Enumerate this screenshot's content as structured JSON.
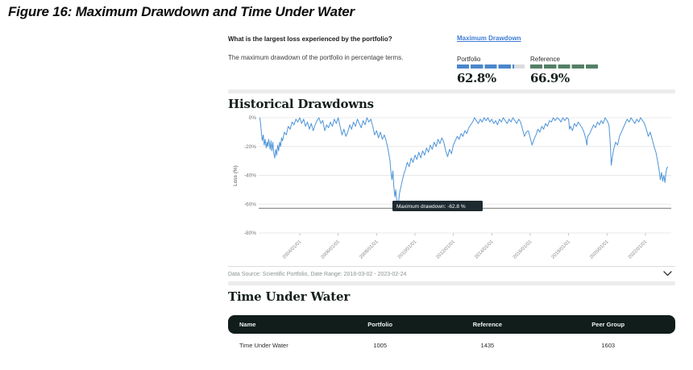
{
  "figure_title": "Figure 16: Maximum Drawdown and Time Under Water",
  "colors": {
    "link_blue": "#3e7cd6",
    "bar_blue": "#4a86c9",
    "bar_green": "#538066",
    "bar_track": "#dcdcdc",
    "line_blue": "#4e94d9",
    "table_header_bg": "#101d1a",
    "tooltip_bg": "#1d2a30"
  },
  "qa": {
    "question": "What is the largest loss experienced by the portfolio?",
    "description": "The maximum drawdown of the portfolio in percentage terms.",
    "link_label": "Maximum Drawdown",
    "portfolio": {
      "label": "Portfolio",
      "value": "62.8%",
      "fill_pct": 84
    },
    "reference": {
      "label": "Reference",
      "value": "66.9%",
      "fill_pct": 100
    }
  },
  "chart": {
    "heading": "Historical Drawdowns",
    "footer": "Data Source: Scientific Portfolio, Date Range: 2018-03-02 - 2023-02-24"
  },
  "chart_data": {
    "type": "line",
    "title": "Historical Drawdowns",
    "xlabel": "",
    "ylabel": "Loss (%)",
    "ylim": [
      -80,
      0
    ],
    "grid": true,
    "legend": "none",
    "y_ticks": [
      {
        "value": 0,
        "label": "0%"
      },
      {
        "value": -20,
        "label": "-20%"
      },
      {
        "value": -40,
        "label": "-40%"
      },
      {
        "value": -60,
        "label": "-60%"
      },
      {
        "value": -80,
        "label": "-80%"
      }
    ],
    "x_ticks": [
      {
        "year": 2004,
        "label": "2004/01/01"
      },
      {
        "year": 2006,
        "label": "2006/01/01"
      },
      {
        "year": 2008,
        "label": "2008/01/01"
      },
      {
        "year": 2010,
        "label": "2010/01/01"
      },
      {
        "year": 2012,
        "label": "2012/01/01"
      },
      {
        "year": 2014,
        "label": "2014/01/01"
      },
      {
        "year": 2016,
        "label": "2016/01/01"
      },
      {
        "year": 2018,
        "label": "2018/01/01"
      },
      {
        "year": 2020,
        "label": "2020/01/01"
      },
      {
        "year": 2022,
        "label": "2022/01/01"
      }
    ],
    "max_drawdown": -62.8,
    "tooltip": "Maximum drawdown: -62.8 %",
    "series": [
      {
        "name": "Portfolio drawdown",
        "points": [
          [
            2001.92,
            0
          ],
          [
            2001.96,
            -4
          ],
          [
            2002.0,
            -10
          ],
          [
            2002.05,
            -16
          ],
          [
            2002.1,
            -12
          ],
          [
            2002.15,
            -19
          ],
          [
            2002.2,
            -15
          ],
          [
            2002.25,
            -21
          ],
          [
            2002.3,
            -17
          ],
          [
            2002.34,
            -20
          ],
          [
            2002.38,
            -15
          ],
          [
            2002.42,
            -18
          ],
          [
            2002.46,
            -22
          ],
          [
            2002.5,
            -16
          ],
          [
            2002.55,
            -23
          ],
          [
            2002.6,
            -17
          ],
          [
            2002.65,
            -25
          ],
          [
            2002.7,
            -28
          ],
          [
            2002.75,
            -22
          ],
          [
            2002.8,
            -26
          ],
          [
            2002.85,
            -19
          ],
          [
            2002.9,
            -23
          ],
          [
            2002.95,
            -17
          ],
          [
            2003.0,
            -20
          ],
          [
            2003.05,
            -14
          ],
          [
            2003.1,
            -16
          ],
          [
            2003.2,
            -10
          ],
          [
            2003.3,
            -12
          ],
          [
            2003.4,
            -6
          ],
          [
            2003.5,
            -8
          ],
          [
            2003.6,
            -3
          ],
          [
            2003.7,
            -5
          ],
          [
            2003.8,
            -1
          ],
          [
            2003.9,
            -3
          ],
          [
            2004.0,
            0
          ],
          [
            2004.1,
            -4
          ],
          [
            2004.2,
            -1
          ],
          [
            2004.3,
            -6
          ],
          [
            2004.4,
            -3
          ],
          [
            2004.5,
            -8
          ],
          [
            2004.6,
            -4
          ],
          [
            2004.7,
            -9
          ],
          [
            2004.8,
            -5
          ],
          [
            2004.9,
            -2
          ],
          [
            2005.0,
            0
          ],
          [
            2005.1,
            -4
          ],
          [
            2005.2,
            -2
          ],
          [
            2005.3,
            -9
          ],
          [
            2005.4,
            -5
          ],
          [
            2005.5,
            -7
          ],
          [
            2005.6,
            -3
          ],
          [
            2005.7,
            -6
          ],
          [
            2005.8,
            -1
          ],
          [
            2005.9,
            -4
          ],
          [
            2006.0,
            0
          ],
          [
            2006.1,
            -6
          ],
          [
            2006.2,
            -12
          ],
          [
            2006.3,
            -8
          ],
          [
            2006.4,
            -13
          ],
          [
            2006.5,
            -10
          ],
          [
            2006.6,
            -5
          ],
          [
            2006.7,
            -8
          ],
          [
            2006.8,
            -3
          ],
          [
            2006.9,
            -6
          ],
          [
            2007.0,
            -1
          ],
          [
            2007.1,
            -4
          ],
          [
            2007.2,
            -7
          ],
          [
            2007.3,
            -2
          ],
          [
            2007.4,
            -5
          ],
          [
            2007.5,
            0
          ],
          [
            2007.6,
            -3
          ],
          [
            2007.7,
            -1
          ],
          [
            2007.8,
            -6
          ],
          [
            2007.9,
            -12
          ],
          [
            2008.0,
            -9
          ],
          [
            2008.1,
            -14
          ],
          [
            2008.2,
            -10
          ],
          [
            2008.3,
            -15
          ],
          [
            2008.4,
            -12
          ],
          [
            2008.5,
            -16
          ],
          [
            2008.6,
            -22
          ],
          [
            2008.7,
            -30
          ],
          [
            2008.75,
            -38
          ],
          [
            2008.8,
            -43
          ],
          [
            2008.85,
            -37
          ],
          [
            2008.9,
            -48
          ],
          [
            2008.95,
            -55
          ],
          [
            2009.0,
            -50
          ],
          [
            2009.05,
            -57
          ],
          [
            2009.1,
            -62.8
          ],
          [
            2009.15,
            -58
          ],
          [
            2009.2,
            -52
          ],
          [
            2009.3,
            -46
          ],
          [
            2009.4,
            -40
          ],
          [
            2009.5,
            -36
          ],
          [
            2009.6,
            -31
          ],
          [
            2009.7,
            -34
          ],
          [
            2009.8,
            -28
          ],
          [
            2009.9,
            -31
          ],
          [
            2010.0,
            -26
          ],
          [
            2010.1,
            -29
          ],
          [
            2010.2,
            -24
          ],
          [
            2010.3,
            -28
          ],
          [
            2010.4,
            -23
          ],
          [
            2010.5,
            -26
          ],
          [
            2010.6,
            -21
          ],
          [
            2010.7,
            -24
          ],
          [
            2010.8,
            -19
          ],
          [
            2010.9,
            -22
          ],
          [
            2011.0,
            -17
          ],
          [
            2011.1,
            -20
          ],
          [
            2011.2,
            -15
          ],
          [
            2011.3,
            -18
          ],
          [
            2011.4,
            -14
          ],
          [
            2011.5,
            -17
          ],
          [
            2011.6,
            -23
          ],
          [
            2011.7,
            -27
          ],
          [
            2011.8,
            -22
          ],
          [
            2011.9,
            -25
          ],
          [
            2012.0,
            -19
          ],
          [
            2012.1,
            -16
          ],
          [
            2012.2,
            -13
          ],
          [
            2012.3,
            -15
          ],
          [
            2012.4,
            -11
          ],
          [
            2012.5,
            -13
          ],
          [
            2012.6,
            -9
          ],
          [
            2012.7,
            -11
          ],
          [
            2012.8,
            -7
          ],
          [
            2012.9,
            -5
          ],
          [
            2013.0,
            -3
          ],
          [
            2013.1,
            0
          ],
          [
            2013.2,
            -2
          ],
          [
            2013.3,
            -4
          ],
          [
            2013.4,
            -1
          ],
          [
            2013.5,
            -3
          ],
          [
            2013.6,
            0
          ],
          [
            2013.7,
            -2
          ],
          [
            2013.8,
            0
          ],
          [
            2013.9,
            -3
          ],
          [
            2014.0,
            -1
          ],
          [
            2014.1,
            -4
          ],
          [
            2014.2,
            -2
          ],
          [
            2014.3,
            -5
          ],
          [
            2014.4,
            -1
          ],
          [
            2014.5,
            -3
          ],
          [
            2014.6,
            0
          ],
          [
            2014.7,
            -2
          ],
          [
            2014.8,
            -4
          ],
          [
            2014.9,
            -1
          ],
          [
            2015.0,
            -3
          ],
          [
            2015.1,
            0
          ],
          [
            2015.2,
            -2
          ],
          [
            2015.3,
            -4
          ],
          [
            2015.4,
            -1
          ],
          [
            2015.5,
            -3
          ],
          [
            2015.6,
            -8
          ],
          [
            2015.7,
            -13
          ],
          [
            2015.8,
            -10
          ],
          [
            2015.9,
            -9
          ],
          [
            2016.0,
            -14
          ],
          [
            2016.1,
            -19
          ],
          [
            2016.2,
            -15
          ],
          [
            2016.3,
            -12
          ],
          [
            2016.4,
            -8
          ],
          [
            2016.5,
            -10
          ],
          [
            2016.6,
            -6
          ],
          [
            2016.7,
            -8
          ],
          [
            2016.8,
            -4
          ],
          [
            2016.9,
            -6
          ],
          [
            2017.0,
            -2
          ],
          [
            2017.1,
            -3
          ],
          [
            2017.2,
            0
          ],
          [
            2017.3,
            -2
          ],
          [
            2017.4,
            0
          ],
          [
            2017.5,
            -1
          ],
          [
            2017.6,
            -3
          ],
          [
            2017.7,
            0
          ],
          [
            2017.8,
            -2
          ],
          [
            2017.9,
            0
          ],
          [
            2018.0,
            -1
          ],
          [
            2018.05,
            -8
          ],
          [
            2018.1,
            -6
          ],
          [
            2018.2,
            -9
          ],
          [
            2018.3,
            -4
          ],
          [
            2018.4,
            -6
          ],
          [
            2018.5,
            -3
          ],
          [
            2018.6,
            -5
          ],
          [
            2018.7,
            -7
          ],
          [
            2018.8,
            -10
          ],
          [
            2018.9,
            -15
          ],
          [
            2018.95,
            -19
          ],
          [
            2019.0,
            -13
          ],
          [
            2019.1,
            -11
          ],
          [
            2019.2,
            -8
          ],
          [
            2019.3,
            -5
          ],
          [
            2019.4,
            -7
          ],
          [
            2019.5,
            -3
          ],
          [
            2019.6,
            -5
          ],
          [
            2019.7,
            -2
          ],
          [
            2019.8,
            -4
          ],
          [
            2019.9,
            0
          ],
          [
            2020.0,
            -2
          ],
          [
            2020.1,
            -5
          ],
          [
            2020.18,
            -20
          ],
          [
            2020.22,
            -33
          ],
          [
            2020.28,
            -27
          ],
          [
            2020.35,
            -22
          ],
          [
            2020.45,
            -17
          ],
          [
            2020.55,
            -19
          ],
          [
            2020.65,
            -13
          ],
          [
            2020.75,
            -10
          ],
          [
            2020.85,
            -7
          ],
          [
            2020.95,
            -4
          ],
          [
            2021.05,
            -1
          ],
          [
            2021.15,
            -3
          ],
          [
            2021.25,
            0
          ],
          [
            2021.35,
            -2
          ],
          [
            2021.45,
            -4
          ],
          [
            2021.55,
            -1
          ],
          [
            2021.65,
            -3
          ],
          [
            2021.75,
            0
          ],
          [
            2021.85,
            -2
          ],
          [
            2021.95,
            -4
          ],
          [
            2022.05,
            -8
          ],
          [
            2022.15,
            -13
          ],
          [
            2022.25,
            -10
          ],
          [
            2022.35,
            -15
          ],
          [
            2022.45,
            -20
          ],
          [
            2022.55,
            -24
          ],
          [
            2022.62,
            -29
          ],
          [
            2022.7,
            -35
          ],
          [
            2022.78,
            -43
          ],
          [
            2022.84,
            -38
          ],
          [
            2022.9,
            -44
          ],
          [
            2022.96,
            -40
          ],
          [
            2023.02,
            -45
          ],
          [
            2023.08,
            -37
          ],
          [
            2023.12,
            -35
          ],
          [
            2023.16,
            -34
          ]
        ]
      }
    ]
  },
  "tuw": {
    "heading": "Time Under Water",
    "table": {
      "columns": [
        "Name",
        "Portfolio",
        "Reference",
        "Peer Group"
      ],
      "rows": [
        {
          "name": "Time Under Water",
          "portfolio": "1005",
          "reference": "1435",
          "peer_group": "1603"
        }
      ]
    }
  }
}
